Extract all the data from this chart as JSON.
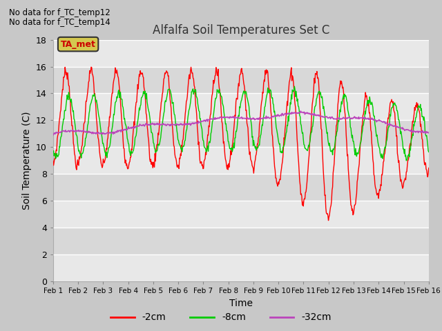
{
  "title": "Alfalfa Soil Temperatures Set C",
  "xlabel": "Time",
  "ylabel": "Soil Temperature (C)",
  "text_above": [
    "No data for f_TC_temp12",
    "No data for f_TC_temp14"
  ],
  "legend_label": "TA_met",
  "ylim": [
    0,
    18
  ],
  "yticks": [
    0,
    2,
    4,
    6,
    8,
    10,
    12,
    14,
    16,
    18
  ],
  "xtick_labels": [
    "Feb 1",
    "Feb 2",
    "Feb 3",
    "Feb 4",
    "Feb 5",
    "Feb 6",
    "Feb 7",
    "Feb 8",
    "Feb 9",
    "Feb 10",
    "Feb 11",
    "Feb 12",
    "Feb 13",
    "Feb 14",
    "Feb 15",
    "Feb 16"
  ],
  "line_colors": {
    "2cm": "#ff0000",
    "8cm": "#00cc00",
    "32cm": "#bb44bb"
  },
  "legend_entries": [
    "-2cm",
    "-8cm",
    "-32cm"
  ],
  "fig_bg": "#c8c8c8",
  "plot_bg": "#e8e8e8",
  "ta_met_color": "#d4c850",
  "grid_color": "#ffffff",
  "band_color": "#d8d8d8"
}
